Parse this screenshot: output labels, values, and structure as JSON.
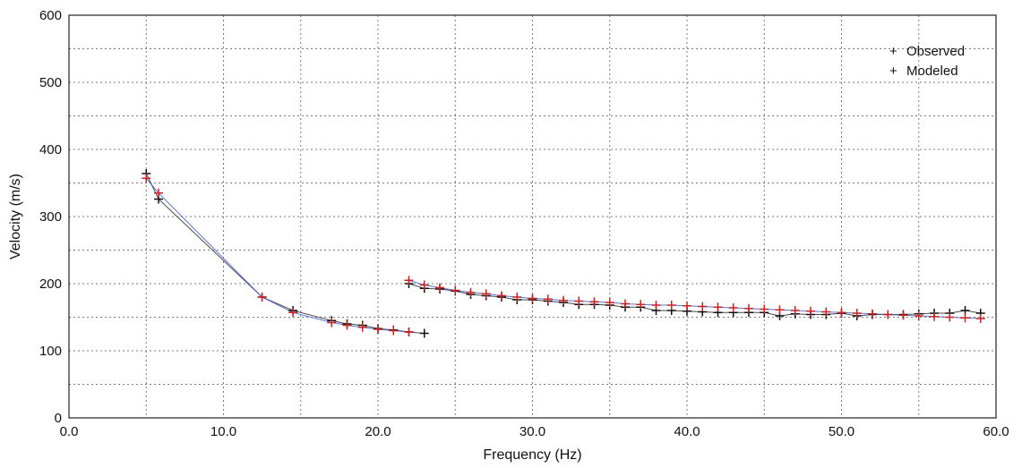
{
  "chart_data": {
    "type": "scatter",
    "title": "",
    "xlabel": "Frequency (Hz)",
    "ylabel": "Velocity (m/s)",
    "xlim": [
      0,
      60
    ],
    "ylim": [
      0,
      600
    ],
    "grid": true,
    "legend_position": "top-right",
    "x_ticks": [
      "0.0",
      "10.0",
      "20.0",
      "30.0",
      "40.0",
      "50.0",
      "60.0"
    ],
    "y_ticks": [
      "0",
      "100",
      "200",
      "300",
      "400",
      "500",
      "600"
    ],
    "series": [
      {
        "name": "Observed",
        "marker": "+",
        "color": "#111111",
        "line_color": "#2a2a2a",
        "segments": [
          [
            [
              5.0,
              364
            ],
            [
              5.8,
              326
            ],
            [
              12.5,
              180
            ],
            [
              14.5,
              160
            ],
            [
              17.0,
              145
            ],
            [
              18.0,
              140
            ],
            [
              19.0,
              138
            ],
            [
              20.0,
              133
            ],
            [
              21.0,
              131
            ],
            [
              22.0,
              128
            ],
            [
              23.0,
              126
            ]
          ],
          [
            [
              22.0,
              200
            ],
            [
              23.0,
              193
            ],
            [
              24.0,
              192
            ],
            [
              25.0,
              189
            ],
            [
              26.0,
              184
            ],
            [
              27.0,
              182
            ],
            [
              28.0,
              180
            ],
            [
              29.0,
              176
            ],
            [
              30.0,
              176
            ],
            [
              31.0,
              174
            ],
            [
              32.0,
              172
            ],
            [
              33.0,
              169
            ],
            [
              34.0,
              169
            ],
            [
              35.0,
              168
            ],
            [
              36.0,
              165
            ],
            [
              37.0,
              165
            ],
            [
              38.0,
              160
            ],
            [
              39.0,
              160
            ],
            [
              40.0,
              159
            ],
            [
              41.0,
              158
            ],
            [
              42.0,
              157
            ],
            [
              43.0,
              157
            ],
            [
              44.0,
              157
            ],
            [
              45.0,
              157
            ],
            [
              46.0,
              152
            ],
            [
              47.0,
              155
            ],
            [
              48.0,
              154
            ],
            [
              49.0,
              154
            ],
            [
              50.0,
              156
            ],
            [
              51.0,
              152
            ],
            [
              52.0,
              154
            ],
            [
              53.0,
              154
            ],
            [
              54.0,
              154
            ],
            [
              55.0,
              155
            ],
            [
              56.0,
              156
            ],
            [
              57.0,
              156
            ],
            [
              58.0,
              160
            ],
            [
              59.0,
              156
            ]
          ]
        ]
      },
      {
        "name": "Modeled",
        "marker": "+",
        "color": "#cc2222",
        "line_color": "#3b5bd6",
        "segments": [
          [
            [
              5.0,
              357
            ],
            [
              5.8,
              335
            ],
            [
              12.5,
              180
            ],
            [
              14.5,
              157
            ],
            [
              17.0,
              142
            ],
            [
              18.0,
              138
            ],
            [
              19.0,
              135
            ],
            [
              20.0,
              132
            ],
            [
              21.0,
              130
            ],
            [
              22.0,
              128
            ]
          ],
          [
            [
              22.0,
              205
            ],
            [
              23.0,
              198
            ],
            [
              24.0,
              194
            ],
            [
              25.0,
              190
            ],
            [
              26.0,
              187
            ],
            [
              27.0,
              185
            ],
            [
              28.0,
              182
            ],
            [
              29.0,
              180
            ],
            [
              30.0,
              178
            ],
            [
              31.0,
              177
            ],
            [
              32.0,
              175
            ],
            [
              33.0,
              174
            ],
            [
              34.0,
              173
            ],
            [
              35.0,
              172
            ],
            [
              36.0,
              170
            ],
            [
              37.0,
              169
            ],
            [
              38.0,
              168
            ],
            [
              39.0,
              168
            ],
            [
              40.0,
              167
            ],
            [
              41.0,
              166
            ],
            [
              42.0,
              165
            ],
            [
              43.0,
              164
            ],
            [
              44.0,
              163
            ],
            [
              45.0,
              162
            ],
            [
              46.0,
              161
            ],
            [
              47.0,
              160
            ],
            [
              48.0,
              159
            ],
            [
              49.0,
              158
            ],
            [
              50.0,
              157
            ],
            [
              51.0,
              156
            ],
            [
              52.0,
              155
            ],
            [
              53.0,
              154
            ],
            [
              54.0,
              153
            ],
            [
              55.0,
              152
            ],
            [
              56.0,
              151
            ],
            [
              57.0,
              150
            ],
            [
              58.0,
              149
            ],
            [
              59.0,
              148
            ]
          ]
        ]
      }
    ]
  }
}
